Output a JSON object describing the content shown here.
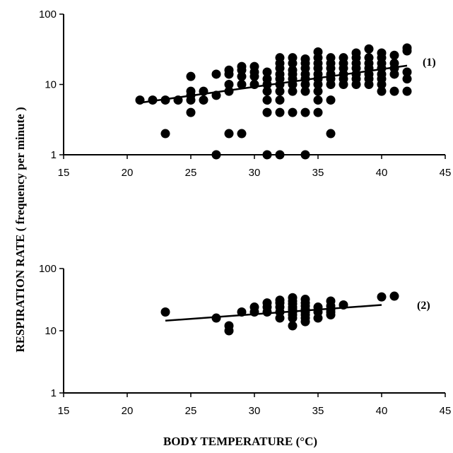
{
  "ylabel": "RESPIRATION RATE ( frequency per minute )",
  "xlabel": "BODY TEMPERATURE  (°C)",
  "chart_data": [
    {
      "type": "scatter",
      "panel_label": "(1)",
      "xlim": [
        15,
        45
      ],
      "ylim": [
        1,
        100
      ],
      "y_scale": "log",
      "x_ticks": [
        15,
        20,
        25,
        30,
        35,
        40,
        45
      ],
      "y_ticks": [
        1,
        10,
        100
      ],
      "grid": false,
      "points": [
        [
          21,
          6
        ],
        [
          22,
          6
        ],
        [
          23,
          6
        ],
        [
          24,
          6
        ],
        [
          25,
          6
        ],
        [
          26,
          6
        ],
        [
          23,
          2
        ],
        [
          25,
          4
        ],
        [
          25,
          7
        ],
        [
          25,
          8
        ],
        [
          25,
          13
        ],
        [
          26,
          8
        ],
        [
          27,
          7
        ],
        [
          27,
          14
        ],
        [
          27,
          1
        ],
        [
          28,
          8
        ],
        [
          28,
          10
        ],
        [
          28,
          14
        ],
        [
          28,
          16
        ],
        [
          28,
          2
        ],
        [
          29,
          10
        ],
        [
          29,
          13
        ],
        [
          29,
          16
        ],
        [
          29,
          18
        ],
        [
          29,
          2
        ],
        [
          30,
          10
        ],
        [
          30,
          13
        ],
        [
          30,
          15
        ],
        [
          30,
          18
        ],
        [
          31,
          4
        ],
        [
          31,
          6
        ],
        [
          31,
          8
        ],
        [
          31,
          10
        ],
        [
          31,
          12
        ],
        [
          31,
          15
        ],
        [
          31,
          1
        ],
        [
          32,
          1
        ],
        [
          32,
          4
        ],
        [
          32,
          6
        ],
        [
          32,
          8
        ],
        [
          32,
          10
        ],
        [
          32,
          12
        ],
        [
          32,
          14
        ],
        [
          32,
          17
        ],
        [
          32,
          20
        ],
        [
          32,
          24
        ],
        [
          33,
          4
        ],
        [
          33,
          8
        ],
        [
          33,
          10
        ],
        [
          33,
          12
        ],
        [
          33,
          14
        ],
        [
          33,
          16
        ],
        [
          33,
          20
        ],
        [
          33,
          24
        ],
        [
          34,
          1
        ],
        [
          34,
          4
        ],
        [
          34,
          8
        ],
        [
          34,
          10
        ],
        [
          34,
          12
        ],
        [
          34,
          14
        ],
        [
          34,
          17
        ],
        [
          34,
          20
        ],
        [
          34,
          23
        ],
        [
          35,
          4
        ],
        [
          35,
          6
        ],
        [
          35,
          8
        ],
        [
          35,
          10
        ],
        [
          35,
          12
        ],
        [
          35,
          14
        ],
        [
          35,
          17
        ],
        [
          35,
          20
        ],
        [
          35,
          24
        ],
        [
          35,
          29
        ],
        [
          36,
          2
        ],
        [
          36,
          6
        ],
        [
          36,
          10
        ],
        [
          36,
          12
        ],
        [
          36,
          14
        ],
        [
          36,
          17
        ],
        [
          36,
          20
        ],
        [
          36,
          24
        ],
        [
          37,
          10
        ],
        [
          37,
          12
        ],
        [
          37,
          14
        ],
        [
          37,
          17
        ],
        [
          37,
          20
        ],
        [
          37,
          24
        ],
        [
          38,
          10
        ],
        [
          38,
          12
        ],
        [
          38,
          14
        ],
        [
          38,
          17
        ],
        [
          38,
          20
        ],
        [
          38,
          24
        ],
        [
          38,
          28
        ],
        [
          39,
          10
        ],
        [
          39,
          12
        ],
        [
          39,
          14
        ],
        [
          39,
          17
        ],
        [
          39,
          20
        ],
        [
          39,
          24
        ],
        [
          39,
          32
        ],
        [
          40,
          8
        ],
        [
          40,
          10
        ],
        [
          40,
          12
        ],
        [
          40,
          14
        ],
        [
          40,
          17
        ],
        [
          40,
          20
        ],
        [
          40,
          24
        ],
        [
          40,
          28
        ],
        [
          41,
          8
        ],
        [
          41,
          14
        ],
        [
          41,
          17
        ],
        [
          41,
          20
        ],
        [
          41,
          26
        ],
        [
          42,
          8
        ],
        [
          42,
          12
        ],
        [
          42,
          15
        ],
        [
          42,
          30
        ],
        [
          42,
          33
        ]
      ],
      "trendline": [
        [
          21,
          5.5
        ],
        [
          42,
          18.5
        ]
      ]
    },
    {
      "type": "scatter",
      "panel_label": "(2)",
      "xlim": [
        15,
        45
      ],
      "ylim": [
        1,
        100
      ],
      "y_scale": "log",
      "x_ticks": [
        15,
        20,
        25,
        30,
        35,
        40,
        45
      ],
      "y_ticks": [
        1,
        10,
        100
      ],
      "grid": false,
      "points": [
        [
          23,
          20
        ],
        [
          27,
          16
        ],
        [
          28,
          12
        ],
        [
          28,
          10
        ],
        [
          29,
          20
        ],
        [
          30,
          20
        ],
        [
          30,
          24
        ],
        [
          31,
          20
        ],
        [
          31,
          24
        ],
        [
          31,
          28
        ],
        [
          32,
          16
        ],
        [
          32,
          20
        ],
        [
          32,
          24
        ],
        [
          32,
          28
        ],
        [
          32,
          31
        ],
        [
          33,
          12
        ],
        [
          33,
          16
        ],
        [
          33,
          18
        ],
        [
          33,
          20
        ],
        [
          33,
          22
        ],
        [
          33,
          24
        ],
        [
          33,
          27
        ],
        [
          33,
          30
        ],
        [
          33,
          34
        ],
        [
          34,
          14
        ],
        [
          34,
          16
        ],
        [
          34,
          18
        ],
        [
          34,
          20
        ],
        [
          34,
          22
        ],
        [
          34,
          25
        ],
        [
          34,
          28
        ],
        [
          34,
          32
        ],
        [
          35,
          16
        ],
        [
          35,
          20
        ],
        [
          35,
          24
        ],
        [
          36,
          18
        ],
        [
          36,
          20
        ],
        [
          36,
          22
        ],
        [
          36,
          25
        ],
        [
          36,
          30
        ],
        [
          37,
          26
        ],
        [
          40,
          35
        ],
        [
          41,
          36
        ]
      ],
      "trendline": [
        [
          23,
          14.5
        ],
        [
          40,
          26
        ]
      ]
    }
  ]
}
